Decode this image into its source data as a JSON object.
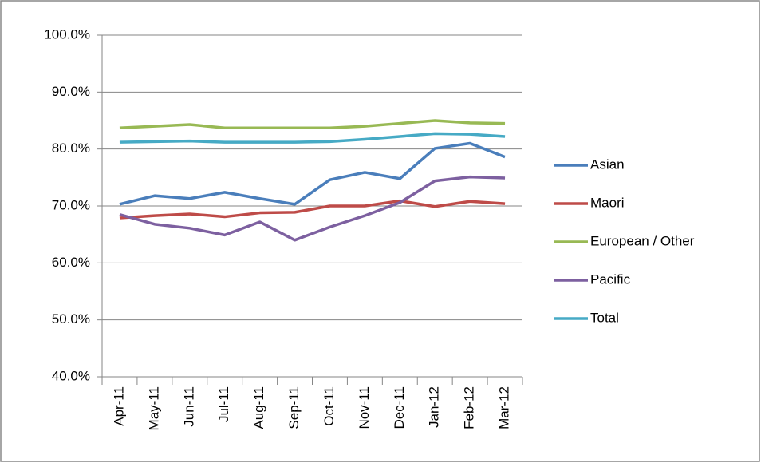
{
  "chart_data": {
    "type": "line",
    "categories": [
      "Apr-11",
      "May-11",
      "Jun-11",
      "Jul-11",
      "Aug-11",
      "Sep-11",
      "Oct-11",
      "Nov-11",
      "Dec-11",
      "Jan-12",
      "Feb-12",
      "Mar-12"
    ],
    "series": [
      {
        "name": "Asian",
        "color": "#4a7ebb",
        "values": [
          70.3,
          71.8,
          71.3,
          72.4,
          71.3,
          70.3,
          74.6,
          75.9,
          74.8,
          80.1,
          81.0,
          78.6
        ]
      },
      {
        "name": "Maori",
        "color": "#be4b48",
        "values": [
          67.9,
          68.3,
          68.6,
          68.1,
          68.8,
          68.9,
          70.0,
          70.0,
          70.9,
          69.9,
          70.8,
          70.4
        ]
      },
      {
        "name": "European / Other",
        "color": "#98b954",
        "values": [
          83.7,
          84.0,
          84.3,
          83.7,
          83.7,
          83.7,
          83.7,
          84.0,
          84.5,
          85.0,
          84.6,
          84.5
        ]
      },
      {
        "name": "Pacific",
        "color": "#7d60a0",
        "values": [
          68.5,
          66.8,
          66.1,
          64.9,
          67.2,
          64.0,
          66.3,
          68.3,
          70.6,
          74.4,
          75.1,
          74.9
        ]
      },
      {
        "name": "Total",
        "color": "#46aac5",
        "values": [
          81.2,
          81.3,
          81.4,
          81.2,
          81.2,
          81.2,
          81.3,
          81.7,
          82.2,
          82.7,
          82.6,
          82.2
        ]
      }
    ],
    "ylim": [
      40,
      100
    ],
    "yticks": [
      {
        "value": 40,
        "label": "40.0%"
      },
      {
        "value": 50,
        "label": "50.0%"
      },
      {
        "value": 60,
        "label": "60.0%"
      },
      {
        "value": 70,
        "label": "70.0%"
      },
      {
        "value": 80,
        "label": "80.0%"
      },
      {
        "value": 90,
        "label": "90.0%"
      },
      {
        "value": 100,
        "label": "100.0%"
      }
    ],
    "grid": true,
    "legend": "right"
  }
}
